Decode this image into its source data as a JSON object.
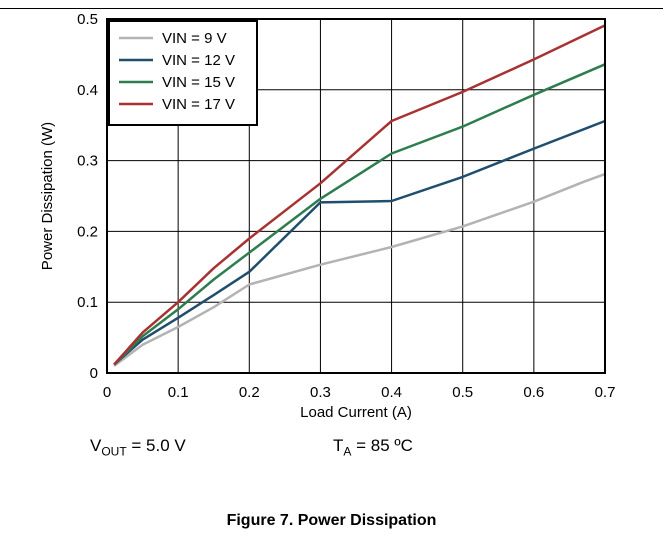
{
  "figure_caption": "Figure 7. Power Dissipation",
  "conditions": {
    "vout_label": "V",
    "vout_sub": "OUT",
    "vout_value": " = 5.0 V",
    "ta_label": "T",
    "ta_sub": "A",
    "ta_value": " = 85 ºC"
  },
  "chart_data": {
    "type": "line",
    "title": "",
    "xlabel": "Load Current (A)",
    "ylabel": "Power Dissipation (W)",
    "xlim": [
      0,
      0.7
    ],
    "ylim": [
      0,
      0.5
    ],
    "xticks": [
      0,
      0.1,
      0.2,
      0.3,
      0.4,
      0.5,
      0.6,
      0.7
    ],
    "yticks": [
      0,
      0.1,
      0.2,
      0.3,
      0.4,
      0.5
    ],
    "xtick_labels": [
      "0",
      "0.1",
      "0.2",
      "0.3",
      "0.4",
      "0.5",
      "0.6",
      "0.7"
    ],
    "ytick_labels": [
      "0",
      "0.1",
      "0.2",
      "0.3",
      "0.4",
      "0.5"
    ],
    "grid": true,
    "legend_position": "top-left",
    "series": [
      {
        "name": "VIN = 9 V",
        "color": "#b3b3b3",
        "x": [
          0.01,
          0.05,
          0.1,
          0.15,
          0.2,
          0.3,
          0.4,
          0.5,
          0.6,
          0.67,
          0.7
        ],
        "y": [
          0.01,
          0.04,
          0.065,
          0.093,
          0.125,
          0.153,
          0.178,
          0.207,
          0.242,
          0.27,
          0.281
        ]
      },
      {
        "name": "VIN = 12 V",
        "color": "#1f4e6e",
        "x": [
          0.01,
          0.05,
          0.1,
          0.15,
          0.2,
          0.3,
          0.4,
          0.5,
          0.6,
          0.7
        ],
        "y": [
          0.012,
          0.047,
          0.078,
          0.11,
          0.143,
          0.241,
          0.243,
          0.277,
          0.317,
          0.356
        ]
      },
      {
        "name": "VIN = 15 V",
        "color": "#2e7d4f",
        "x": [
          0.01,
          0.05,
          0.1,
          0.15,
          0.2,
          0.3,
          0.4,
          0.5,
          0.6,
          0.7
        ],
        "y": [
          0.012,
          0.052,
          0.09,
          0.132,
          0.17,
          0.246,
          0.31,
          0.348,
          0.393,
          0.436
        ]
      },
      {
        "name": "VIN = 17 V",
        "color": "#a83232",
        "x": [
          0.01,
          0.05,
          0.1,
          0.15,
          0.2,
          0.3,
          0.4,
          0.5,
          0.6,
          0.7
        ],
        "y": [
          0.012,
          0.057,
          0.1,
          0.148,
          0.19,
          0.268,
          0.356,
          0.397,
          0.443,
          0.491
        ]
      }
    ]
  }
}
